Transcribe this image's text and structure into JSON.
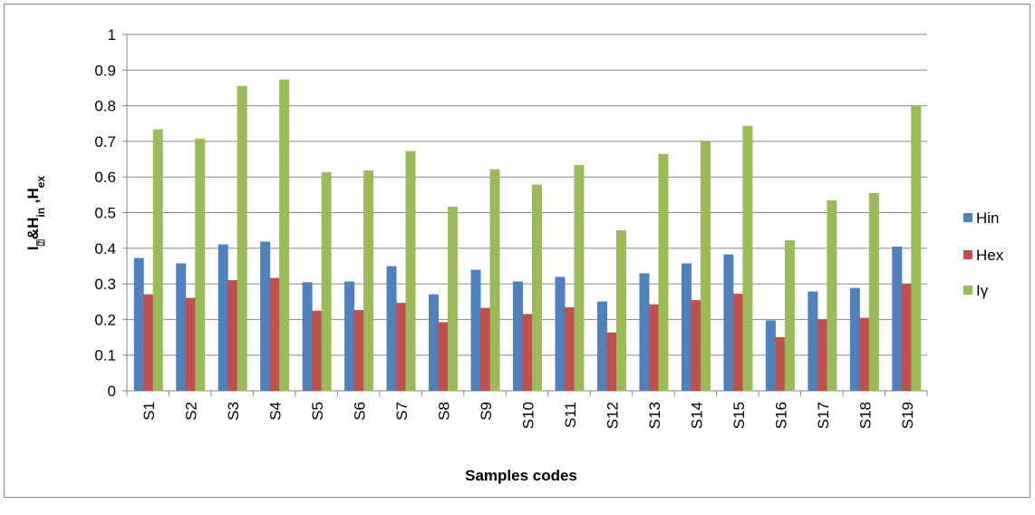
{
  "chart_data": {
    "type": "bar",
    "xlabel": "Samples codes",
    "ylabel_parts": [
      "I",
      "⍰",
      "&H",
      "in",
      " ,H",
      "ex"
    ],
    "categories": [
      "S1",
      "S2",
      "S3",
      "S4",
      "S5",
      "S6",
      "S7",
      "S8",
      "S9",
      "S10",
      "S11",
      "S12",
      "S13",
      "S14",
      "S15",
      "S16",
      "S17",
      "S18",
      "S19"
    ],
    "series": [
      {
        "name": "Hin",
        "color": "#4f81bd",
        "values": [
          0.372,
          0.357,
          0.41,
          0.418,
          0.304,
          0.306,
          0.349,
          0.27,
          0.339,
          0.306,
          0.319,
          0.25,
          0.329,
          0.357,
          0.382,
          0.197,
          0.278,
          0.288,
          0.404
        ]
      },
      {
        "name": "Hex",
        "color": "#c0504d",
        "values": [
          0.27,
          0.26,
          0.31,
          0.316,
          0.224,
          0.226,
          0.246,
          0.192,
          0.232,
          0.215,
          0.234,
          0.163,
          0.242,
          0.254,
          0.272,
          0.15,
          0.2,
          0.204,
          0.3
        ]
      },
      {
        "name": "Iγ",
        "color": "#9bbb59",
        "values": [
          0.733,
          0.707,
          0.855,
          0.873,
          0.613,
          0.618,
          0.672,
          0.516,
          0.621,
          0.578,
          0.633,
          0.45,
          0.664,
          0.699,
          0.743,
          0.422,
          0.534,
          0.554,
          0.801
        ]
      }
    ],
    "ylim": [
      0,
      1
    ],
    "yticks": [
      0,
      0.1,
      0.2,
      0.3,
      0.4,
      0.5,
      0.6,
      0.7,
      0.8,
      0.9,
      1
    ],
    "grid": true,
    "legend": "right"
  }
}
